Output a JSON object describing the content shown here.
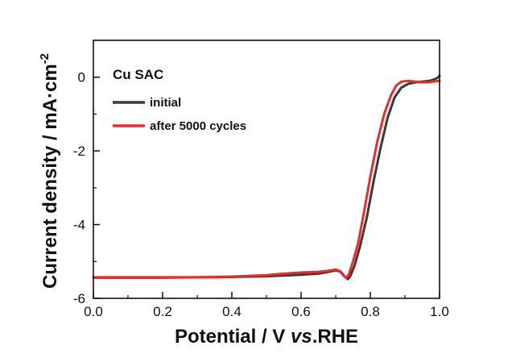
{
  "chart_data": {
    "type": "line",
    "annotation": "Cu SAC",
    "xlabel": {
      "prefix": "Potential / V ",
      "italic": "vs",
      "suffix": ".RHE"
    },
    "ylabel": {
      "main": "Current density / mA·cm",
      "sup": "-2"
    },
    "xlim": [
      0.0,
      1.0
    ],
    "ylim": [
      -6,
      1
    ],
    "x_ticks": [
      "0.0",
      "0.2",
      "0.4",
      "0.6",
      "0.8",
      "1.0"
    ],
    "y_ticks": [
      "0",
      "-2",
      "-4",
      "-6"
    ],
    "legend_position": "top-left",
    "grid": false,
    "series": [
      {
        "name": "initial",
        "color": "#3a3a3a",
        "points": [
          [
            0.0,
            -5.44
          ],
          [
            0.1,
            -5.44
          ],
          [
            0.2,
            -5.44
          ],
          [
            0.3,
            -5.43
          ],
          [
            0.4,
            -5.42
          ],
          [
            0.5,
            -5.4
          ],
          [
            0.55,
            -5.38
          ],
          [
            0.6,
            -5.36
          ],
          [
            0.65,
            -5.33
          ],
          [
            0.68,
            -5.28
          ],
          [
            0.7,
            -5.24
          ],
          [
            0.715,
            -5.28
          ],
          [
            0.727,
            -5.42
          ],
          [
            0.735,
            -5.48
          ],
          [
            0.742,
            -5.4
          ],
          [
            0.755,
            -5.1
          ],
          [
            0.77,
            -4.6
          ],
          [
            0.79,
            -3.8
          ],
          [
            0.81,
            -2.8
          ],
          [
            0.83,
            -1.9
          ],
          [
            0.85,
            -1.1
          ],
          [
            0.87,
            -0.55
          ],
          [
            0.89,
            -0.28
          ],
          [
            0.91,
            -0.18
          ],
          [
            0.93,
            -0.14
          ],
          [
            0.95,
            -0.12
          ],
          [
            0.97,
            -0.1
          ],
          [
            0.985,
            -0.06
          ],
          [
            0.995,
            -0.01
          ],
          [
            1.0,
            0.04
          ]
        ]
      },
      {
        "name": "after 5000 cycles",
        "color": "#ee2b2b",
        "points": [
          [
            0.0,
            -5.43
          ],
          [
            0.1,
            -5.43
          ],
          [
            0.2,
            -5.43
          ],
          [
            0.3,
            -5.43
          ],
          [
            0.4,
            -5.41
          ],
          [
            0.5,
            -5.37
          ],
          [
            0.55,
            -5.33
          ],
          [
            0.6,
            -5.3
          ],
          [
            0.65,
            -5.28
          ],
          [
            0.68,
            -5.25
          ],
          [
            0.7,
            -5.22
          ],
          [
            0.712,
            -5.26
          ],
          [
            0.722,
            -5.38
          ],
          [
            0.73,
            -5.44
          ],
          [
            0.738,
            -5.36
          ],
          [
            0.75,
            -5.0
          ],
          [
            0.765,
            -4.5
          ],
          [
            0.78,
            -3.75
          ],
          [
            0.8,
            -2.7
          ],
          [
            0.82,
            -1.75
          ],
          [
            0.84,
            -1.0
          ],
          [
            0.86,
            -0.48
          ],
          [
            0.875,
            -0.22
          ],
          [
            0.89,
            -0.12
          ],
          [
            0.91,
            -0.1
          ],
          [
            0.93,
            -0.12
          ],
          [
            0.95,
            -0.14
          ],
          [
            0.97,
            -0.13
          ],
          [
            0.99,
            -0.11
          ],
          [
            1.0,
            -0.1
          ]
        ]
      }
    ]
  }
}
